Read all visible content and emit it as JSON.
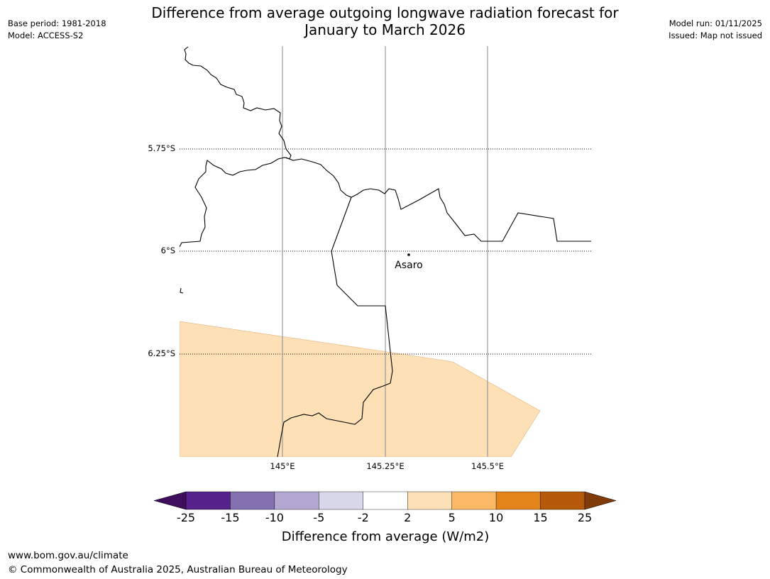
{
  "title": {
    "line1": "Difference from average outgoing longwave radiation forecast for",
    "line2": "January to March 2026"
  },
  "meta_left": {
    "base_period": "Base period: 1981-2018",
    "model": "Model: ACCESS-S2"
  },
  "meta_right": {
    "model_run": "Model run: 01/11/2025",
    "issued": "Issued: Map not issued"
  },
  "map": {
    "lat_labels": [
      "5.75°S",
      "6°S",
      "6.25°S"
    ],
    "lon_labels": [
      "145°E",
      "145.25°E",
      "145.5°E"
    ],
    "town": "Asaro",
    "anomaly_category": "2 to 5",
    "anomaly_color": "#fde0b6"
  },
  "colorbar": {
    "title": "Difference from average (W/m2)",
    "ticks": [
      "-25",
      "-15",
      "-10",
      "-5",
      "-2",
      "2",
      "5",
      "10",
      "15",
      "25"
    ],
    "colors": [
      "#3f0f5e",
      "#55218a",
      "#8270b0",
      "#b1a7d1",
      "#d9d8ea",
      "#ffffff",
      "#fde0b6",
      "#fbb865",
      "#e3841a",
      "#b5590a",
      "#7f3b08"
    ]
  },
  "footer": {
    "url": "www.bom.gov.au/climate",
    "copyright": "© Commonwealth of Australia 2025, Australian Bureau of Meteorology"
  }
}
